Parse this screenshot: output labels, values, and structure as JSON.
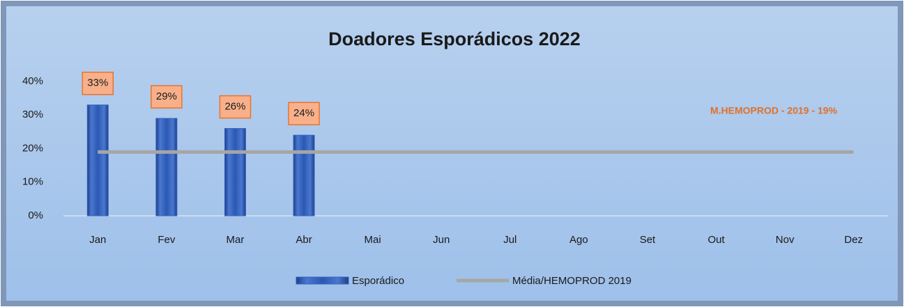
{
  "chart_data": {
    "type": "bar",
    "title": "Doadores Esporádicos 2022",
    "categories": [
      "Jan",
      "Fev",
      "Mar",
      "Abr",
      "Mai",
      "Jun",
      "Jul",
      "Ago",
      "Set",
      "Out",
      "Nov",
      "Dez"
    ],
    "series": [
      {
        "name": "Esporádico",
        "type": "bar",
        "color": "#3562c0",
        "values": [
          33,
          29,
          26,
          24,
          null,
          null,
          null,
          null,
          null,
          null,
          null,
          null
        ],
        "value_labels": [
          "33%",
          "29%",
          "26%",
          "24%",
          null,
          null,
          null,
          null,
          null,
          null,
          null,
          null
        ]
      },
      {
        "name": "Média/HEMOPROD 2019",
        "type": "line",
        "color": "#a6a6a6",
        "values": [
          19,
          19,
          19,
          19,
          19,
          19,
          19,
          19,
          19,
          19,
          19,
          19
        ]
      }
    ],
    "annotations": [
      "M.HEMOPROD - 2019 - 19%"
    ],
    "ylim": [
      0,
      40
    ],
    "yticks": [
      {
        "value": 0,
        "label": "0%"
      },
      {
        "value": 10,
        "label": "10%"
      },
      {
        "value": 20,
        "label": "20%"
      },
      {
        "value": 30,
        "label": "30%"
      },
      {
        "value": 40,
        "label": "40%"
      }
    ],
    "legend": "bottom"
  }
}
